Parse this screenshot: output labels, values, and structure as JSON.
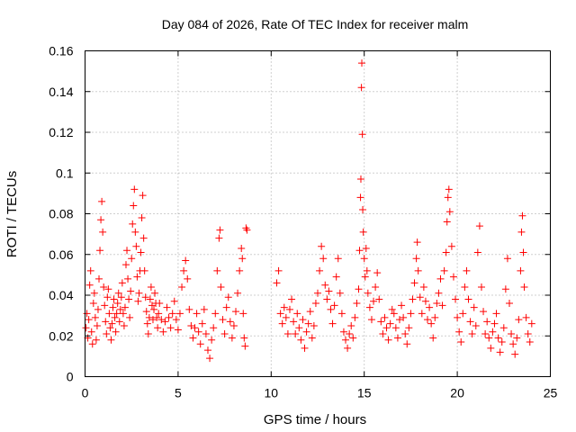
{
  "chart_data": {
    "type": "scatter",
    "title": "Day 084 of 2026, Rate Of TEC Index for receiver malm",
    "xlabel": "GPS time / hours",
    "ylabel": "ROTI / TECUs",
    "xlim": [
      0,
      25
    ],
    "ylim": [
      0,
      0.16
    ],
    "xticks": [
      0,
      5,
      10,
      15,
      20,
      25
    ],
    "xtick_labels": [
      "0",
      "5",
      "10",
      "15",
      "20",
      "25"
    ],
    "yticks": [
      0,
      0.02,
      0.04,
      0.06,
      0.08,
      0.1,
      0.12,
      0.14,
      0.16
    ],
    "ytick_labels": [
      "0",
      "0.02",
      "0.04",
      "0.06",
      "0.08",
      "0.1",
      "0.12",
      "0.14",
      "0.16"
    ],
    "grid": true,
    "marker": "plus",
    "series": [
      {
        "name": "ROTI",
        "color": "#ff0000",
        "points": [
          [
            0.05,
            0.024
          ],
          [
            0.1,
            0.031
          ],
          [
            0.15,
            0.019
          ],
          [
            0.2,
            0.028
          ],
          [
            0.25,
            0.045
          ],
          [
            0.3,
            0.052
          ],
          [
            0.35,
            0.022
          ],
          [
            0.4,
            0.016
          ],
          [
            0.45,
            0.036
          ],
          [
            0.5,
            0.041
          ],
          [
            0.55,
            0.029
          ],
          [
            0.6,
            0.018
          ],
          [
            0.65,
            0.025
          ],
          [
            0.7,
            0.033
          ],
          [
            0.75,
            0.048
          ],
          [
            0.8,
            0.062
          ],
          [
            0.85,
            0.077
          ],
          [
            0.9,
            0.086
          ],
          [
            0.95,
            0.071
          ],
          [
            1.0,
            0.044
          ],
          [
            1.05,
            0.035
          ],
          [
            1.1,
            0.027
          ],
          [
            1.15,
            0.021
          ],
          [
            1.2,
            0.039
          ],
          [
            1.25,
            0.043
          ],
          [
            1.3,
            0.031
          ],
          [
            1.35,
            0.024
          ],
          [
            1.4,
            0.018
          ],
          [
            1.45,
            0.026
          ],
          [
            1.5,
            0.034
          ],
          [
            1.55,
            0.038
          ],
          [
            1.6,
            0.029
          ],
          [
            1.65,
            0.022
          ],
          [
            1.7,
            0.031
          ],
          [
            1.75,
            0.036
          ],
          [
            1.8,
            0.041
          ],
          [
            1.85,
            0.027
          ],
          [
            1.9,
            0.033
          ],
          [
            1.95,
            0.039
          ],
          [
            2.0,
            0.046
          ],
          [
            2.05,
            0.031
          ],
          [
            2.1,
            0.025
          ],
          [
            2.15,
            0.034
          ],
          [
            2.2,
            0.055
          ],
          [
            2.25,
            0.062
          ],
          [
            2.3,
            0.048
          ],
          [
            2.35,
            0.038
          ],
          [
            2.4,
            0.029
          ],
          [
            2.45,
            0.042
          ],
          [
            2.5,
            0.058
          ],
          [
            2.55,
            0.075
          ],
          [
            2.6,
            0.084
          ],
          [
            2.65,
            0.092
          ],
          [
            2.7,
            0.071
          ],
          [
            2.75,
            0.064
          ],
          [
            2.8,
            0.049
          ],
          [
            2.85,
            0.037
          ],
          [
            2.9,
            0.041
          ],
          [
            2.95,
            0.052
          ],
          [
            3.0,
            0.061
          ],
          [
            3.05,
            0.078
          ],
          [
            3.1,
            0.089
          ],
          [
            3.15,
            0.068
          ],
          [
            3.2,
            0.052
          ],
          [
            3.25,
            0.039
          ],
          [
            3.3,
            0.032
          ],
          [
            3.35,
            0.026
          ],
          [
            3.4,
            0.021
          ],
          [
            3.45,
            0.029
          ],
          [
            3.5,
            0.038
          ],
          [
            3.55,
            0.044
          ],
          [
            3.6,
            0.035
          ],
          [
            3.65,
            0.028
          ],
          [
            3.7,
            0.033
          ],
          [
            3.75,
            0.041
          ],
          [
            3.8,
            0.036
          ],
          [
            3.85,
            0.029
          ],
          [
            3.9,
            0.024
          ],
          [
            3.95,
            0.031
          ],
          [
            4.0,
            0.036
          ],
          [
            4.1,
            0.028
          ],
          [
            4.2,
            0.022
          ],
          [
            4.3,
            0.027
          ],
          [
            4.4,
            0.034
          ],
          [
            4.5,
            0.029
          ],
          [
            4.6,
            0.024
          ],
          [
            4.7,
            0.031
          ],
          [
            4.8,
            0.037
          ],
          [
            4.9,
            0.028
          ],
          [
            5.0,
            0.023
          ],
          [
            5.1,
            0.031
          ],
          [
            5.2,
            0.044
          ],
          [
            5.3,
            0.052
          ],
          [
            5.4,
            0.057
          ],
          [
            5.5,
            0.048
          ],
          [
            5.6,
            0.033
          ],
          [
            5.7,
            0.025
          ],
          [
            5.8,
            0.019
          ],
          [
            5.9,
            0.024
          ],
          [
            6.0,
            0.031
          ],
          [
            6.1,
            0.022
          ],
          [
            6.2,
            0.016
          ],
          [
            6.3,
            0.026
          ],
          [
            6.4,
            0.033
          ],
          [
            6.5,
            0.021
          ],
          [
            6.6,
            0.013
          ],
          [
            6.7,
            0.009
          ],
          [
            6.8,
            0.018
          ],
          [
            6.9,
            0.024
          ],
          [
            7.0,
            0.031
          ],
          [
            7.1,
            0.052
          ],
          [
            7.2,
            0.068
          ],
          [
            7.25,
            0.072
          ],
          [
            7.3,
            0.044
          ],
          [
            7.4,
            0.028
          ],
          [
            7.5,
            0.021
          ],
          [
            7.6,
            0.034
          ],
          [
            7.7,
            0.039
          ],
          [
            7.8,
            0.027
          ],
          [
            7.9,
            0.019
          ],
          [
            8.0,
            0.025
          ],
          [
            8.1,
            0.032
          ],
          [
            8.2,
            0.041
          ],
          [
            8.3,
            0.052
          ],
          [
            8.4,
            0.063
          ],
          [
            8.45,
            0.058
          ],
          [
            8.5,
            0.031
          ],
          [
            8.55,
            0.019
          ],
          [
            8.6,
            0.015
          ],
          [
            8.65,
            0.073
          ],
          [
            8.7,
            0.072
          ],
          [
            10.3,
            0.046
          ],
          [
            10.4,
            0.052
          ],
          [
            10.5,
            0.031
          ],
          [
            10.6,
            0.026
          ],
          [
            10.7,
            0.034
          ],
          [
            10.8,
            0.029
          ],
          [
            10.9,
            0.021
          ],
          [
            11.0,
            0.033
          ],
          [
            11.1,
            0.038
          ],
          [
            11.2,
            0.027
          ],
          [
            11.3,
            0.021
          ],
          [
            11.4,
            0.031
          ],
          [
            11.5,
            0.024
          ],
          [
            11.6,
            0.018
          ],
          [
            11.7,
            0.028
          ],
          [
            11.8,
            0.014
          ],
          [
            11.9,
            0.022
          ],
          [
            12.0,
            0.026
          ],
          [
            12.1,
            0.032
          ],
          [
            12.2,
            0.019
          ],
          [
            12.3,
            0.025
          ],
          [
            12.4,
            0.036
          ],
          [
            12.5,
            0.041
          ],
          [
            12.6,
            0.052
          ],
          [
            12.7,
            0.064
          ],
          [
            12.8,
            0.058
          ],
          [
            12.9,
            0.045
          ],
          [
            13.0,
            0.038
          ],
          [
            13.1,
            0.042
          ],
          [
            13.2,
            0.033
          ],
          [
            13.3,
            0.026
          ],
          [
            13.4,
            0.035
          ],
          [
            13.5,
            0.049
          ],
          [
            13.6,
            0.058
          ],
          [
            13.7,
            0.041
          ],
          [
            13.8,
            0.031
          ],
          [
            13.9,
            0.022
          ],
          [
            14.0,
            0.018
          ],
          [
            14.1,
            0.014
          ],
          [
            14.2,
            0.021
          ],
          [
            14.3,
            0.025
          ],
          [
            14.4,
            0.019
          ],
          [
            14.5,
            0.029
          ],
          [
            14.6,
            0.036
          ],
          [
            14.7,
            0.043
          ],
          [
            14.75,
            0.062
          ],
          [
            14.8,
            0.088
          ],
          [
            14.82,
            0.097
          ],
          [
            14.85,
            0.142
          ],
          [
            14.87,
            0.154
          ],
          [
            14.9,
            0.119
          ],
          [
            14.92,
            0.082
          ],
          [
            14.95,
            0.071
          ],
          [
            15.0,
            0.058
          ],
          [
            15.05,
            0.049
          ],
          [
            15.1,
            0.063
          ],
          [
            15.15,
            0.052
          ],
          [
            15.2,
            0.041
          ],
          [
            15.3,
            0.034
          ],
          [
            15.4,
            0.028
          ],
          [
            15.5,
            0.037
          ],
          [
            15.6,
            0.044
          ],
          [
            15.7,
            0.051
          ],
          [
            15.8,
            0.038
          ],
          [
            15.9,
            0.027
          ],
          [
            16.0,
            0.021
          ],
          [
            16.1,
            0.029
          ],
          [
            16.2,
            0.024
          ],
          [
            16.3,
            0.018
          ],
          [
            16.4,
            0.026
          ],
          [
            16.5,
            0.033
          ],
          [
            16.6,
            0.031
          ],
          [
            16.7,
            0.024
          ],
          [
            16.8,
            0.019
          ],
          [
            16.9,
            0.028
          ],
          [
            17.0,
            0.035
          ],
          [
            17.1,
            0.029
          ],
          [
            17.2,
            0.021
          ],
          [
            17.3,
            0.016
          ],
          [
            17.4,
            0.024
          ],
          [
            17.5,
            0.031
          ],
          [
            17.6,
            0.038
          ],
          [
            17.7,
            0.046
          ],
          [
            17.8,
            0.058
          ],
          [
            17.85,
            0.066
          ],
          [
            17.9,
            0.052
          ],
          [
            18.0,
            0.039
          ],
          [
            18.1,
            0.031
          ],
          [
            18.2,
            0.044
          ],
          [
            18.3,
            0.037
          ],
          [
            18.4,
            0.028
          ],
          [
            18.5,
            0.034
          ],
          [
            18.6,
            0.026
          ],
          [
            18.7,
            0.019
          ],
          [
            18.8,
            0.029
          ],
          [
            18.9,
            0.036
          ],
          [
            19.0,
            0.041
          ],
          [
            19.1,
            0.048
          ],
          [
            19.2,
            0.035
          ],
          [
            19.3,
            0.052
          ],
          [
            19.4,
            0.061
          ],
          [
            19.45,
            0.076
          ],
          [
            19.5,
            0.088
          ],
          [
            19.55,
            0.092
          ],
          [
            19.6,
            0.081
          ],
          [
            19.7,
            0.064
          ],
          [
            19.8,
            0.049
          ],
          [
            19.9,
            0.038
          ],
          [
            20.0,
            0.029
          ],
          [
            20.1,
            0.022
          ],
          [
            20.2,
            0.017
          ],
          [
            20.3,
            0.031
          ],
          [
            20.4,
            0.044
          ],
          [
            20.5,
            0.052
          ],
          [
            20.6,
            0.038
          ],
          [
            20.7,
            0.027
          ],
          [
            20.8,
            0.021
          ],
          [
            20.9,
            0.034
          ],
          [
            21.0,
            0.025
          ],
          [
            21.1,
            0.061
          ],
          [
            21.2,
            0.074
          ],
          [
            21.3,
            0.044
          ],
          [
            21.4,
            0.032
          ],
          [
            21.5,
            0.021
          ],
          [
            21.6,
            0.027
          ],
          [
            21.7,
            0.019
          ],
          [
            21.8,
            0.014
          ],
          [
            21.9,
            0.022
          ],
          [
            22.0,
            0.026
          ],
          [
            22.1,
            0.031
          ],
          [
            22.2,
            0.019
          ],
          [
            22.3,
            0.012
          ],
          [
            22.4,
            0.017
          ],
          [
            22.5,
            0.024
          ],
          [
            22.6,
            0.043
          ],
          [
            22.7,
            0.058
          ],
          [
            22.8,
            0.036
          ],
          [
            22.9,
            0.021
          ],
          [
            23.0,
            0.016
          ],
          [
            23.1,
            0.011
          ],
          [
            23.2,
            0.019
          ],
          [
            23.3,
            0.028
          ],
          [
            23.4,
            0.052
          ],
          [
            23.45,
            0.071
          ],
          [
            23.5,
            0.079
          ],
          [
            23.55,
            0.061
          ],
          [
            23.6,
            0.044
          ],
          [
            23.7,
            0.029
          ],
          [
            23.8,
            0.021
          ],
          [
            23.9,
            0.017
          ],
          [
            24.0,
            0.026
          ]
        ]
      }
    ]
  }
}
